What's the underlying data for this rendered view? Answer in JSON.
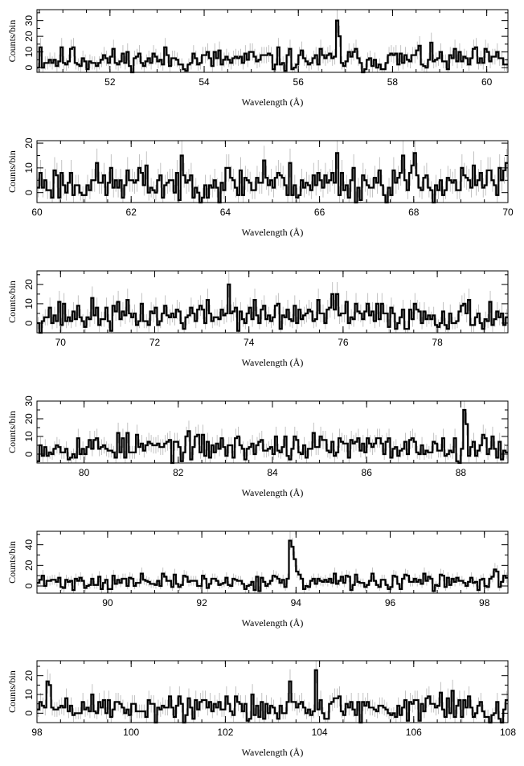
{
  "figure": {
    "ylabel": "Counts/bin",
    "xlabel": "Wavelength (Å)"
  },
  "colors": {
    "histogram": "#000000",
    "errorbars": "#b4b4b4",
    "frame": "#000000"
  },
  "chart_data": [
    {
      "type": "line",
      "style": "step histogram with error bars",
      "xlabel": "Wavelength (Å)",
      "ylabel": "Counts/bin",
      "xlim": [
        50.45,
        60.45
      ],
      "ylim": [
        -3,
        37
      ],
      "xticks": [
        52,
        54,
        56,
        58,
        60
      ],
      "yticks": [
        0,
        10,
        20,
        30
      ],
      "baseline": 5,
      "noise": 4,
      "seed": 11,
      "features": [
        {
          "x": 56.8,
          "y": 30
        },
        {
          "x": 56.85,
          "y": 20
        },
        {
          "x": 58.55,
          "y": 14
        },
        {
          "x": 50.5,
          "y": 13
        },
        {
          "x": 51.2,
          "y": 13
        }
      ],
      "annotations": []
    },
    {
      "type": "line",
      "style": "step histogram with error bars",
      "xlabel": "Wavelength (Å)",
      "ylabel": "Counts/bin",
      "xlim": [
        60.0,
        70.0
      ],
      "ylim": [
        -4,
        21
      ],
      "xticks": [
        60,
        62,
        64,
        66,
        68,
        70
      ],
      "yticks": [
        0,
        10,
        20
      ],
      "baseline": 4,
      "noise": 4,
      "seed": 23,
      "features": [
        {
          "x": 66.35,
          "y": 16
        },
        {
          "x": 67.75,
          "y": 15
        },
        {
          "x": 68.0,
          "y": 16
        },
        {
          "x": 64.8,
          "y": 13
        },
        {
          "x": 69.95,
          "y": 12
        }
      ],
      "annotations": []
    },
    {
      "type": "line",
      "style": "step histogram with error bars",
      "xlabel": "Wavelength (Å)",
      "ylabel": "Counts/bin",
      "xlim": [
        69.5,
        79.5
      ],
      "ylim": [
        -5,
        27
      ],
      "xticks": [
        70,
        72,
        74,
        76,
        78
      ],
      "yticks": [
        0,
        10,
        20
      ],
      "baseline": 4,
      "noise": 4,
      "seed": 37,
      "features": [
        {
          "x": 73.55,
          "y": 20
        },
        {
          "x": 75.75,
          "y": 15
        },
        {
          "x": 75.85,
          "y": 15
        },
        {
          "x": 76.05,
          "y": 11
        }
      ],
      "annotations": []
    },
    {
      "type": "line",
      "style": "step histogram with error bars",
      "xlabel": "Wavelength (Å)",
      "ylabel": "Counts/bin",
      "xlim": [
        79.0,
        89.0
      ],
      "ylim": [
        -5,
        30
      ],
      "xticks": [
        80,
        82,
        84,
        86,
        88
      ],
      "yticks": [
        0,
        10,
        20,
        30
      ],
      "baseline": 4,
      "noise": 4,
      "seed": 53,
      "features": [
        {
          "x": 88.05,
          "y": 25
        },
        {
          "x": 88.1,
          "y": 17
        },
        {
          "x": 80.7,
          "y": 12
        },
        {
          "x": 84.25,
          "y": 10
        }
      ],
      "annotations": []
    },
    {
      "type": "line",
      "style": "step histogram with error bars",
      "xlabel": "Wavelength (Å)",
      "ylabel": "Counts/bin",
      "xlim": [
        88.5,
        98.5
      ],
      "ylim": [
        -7,
        53
      ],
      "xticks": [
        90,
        92,
        94,
        96,
        98
      ],
      "yticks": [
        0,
        20,
        40
      ],
      "baseline": 4,
      "noise": 4,
      "seed": 71,
      "features": [
        {
          "x": 93.85,
          "y": 44
        },
        {
          "x": 93.9,
          "y": 38
        },
        {
          "x": 93.95,
          "y": 26
        },
        {
          "x": 94.0,
          "y": 14
        },
        {
          "x": 98.2,
          "y": 16
        },
        {
          "x": 98.25,
          "y": 14
        }
      ],
      "annotations": []
    },
    {
      "type": "line",
      "style": "step histogram with error bars",
      "xlabel": "Wavelength (Å)",
      "ylabel": "Counts/bin",
      "xlim": [
        98.0,
        108.0
      ],
      "ylim": [
        -5,
        28
      ],
      "xticks": [
        98,
        100,
        102,
        104,
        106,
        108
      ],
      "yticks": [
        0,
        10,
        20
      ],
      "baseline": 3,
      "noise": 4,
      "seed": 89,
      "features": [
        {
          "x": 103.9,
          "y": 23
        },
        {
          "x": 98.2,
          "y": 17
        },
        {
          "x": 98.25,
          "y": 15
        },
        {
          "x": 103.35,
          "y": 17
        },
        {
          "x": 106.8,
          "y": 12
        }
      ],
      "annotations": []
    }
  ]
}
